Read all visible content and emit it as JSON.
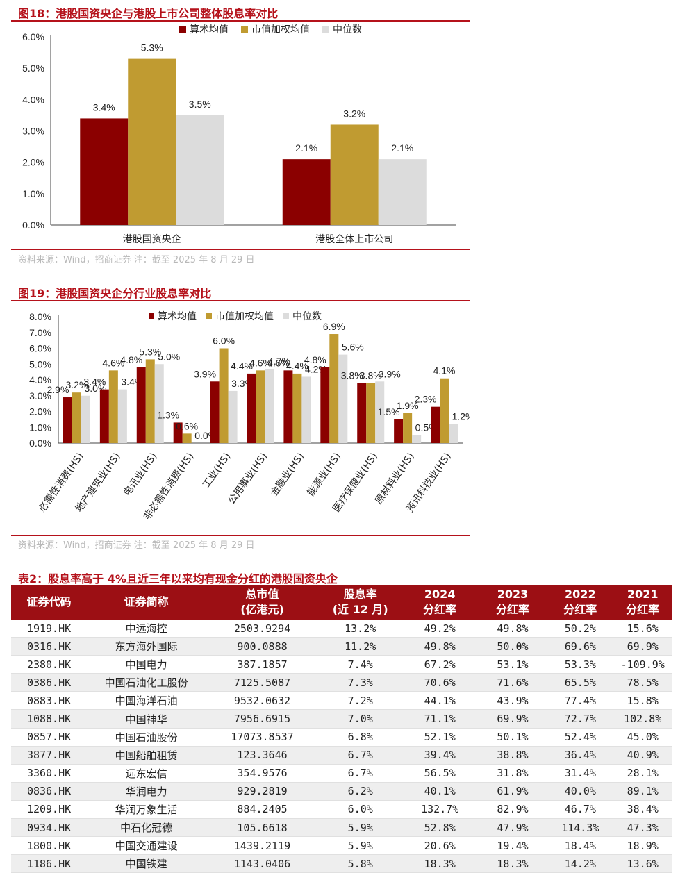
{
  "figure18": {
    "title": "图18：港股国资央企与港股上市公司整体股息率对比",
    "source": "资料来源：Wind，招商证券    注：截至 2025 年 8 月 29 日",
    "colors": {
      "mean": "#8b0000",
      "weighted": "#c09b31",
      "median": "#dcdcdc"
    },
    "chart_data": {
      "type": "bar",
      "categories": [
        "港股国资央企",
        "港股全体上市公司"
      ],
      "series": [
        {
          "name": "算术均值",
          "values": [
            3.4,
            2.1
          ]
        },
        {
          "name": "市值加权均值",
          "values": [
            5.3,
            3.2
          ]
        },
        {
          "name": "中位数",
          "values": [
            3.5,
            2.1
          ]
        }
      ],
      "value_labels": [
        [
          "3.4%",
          "2.1%"
        ],
        [
          "5.3%",
          "3.2%"
        ],
        [
          "3.5%",
          "2.1%"
        ]
      ],
      "yticks": [
        "0.0%",
        "1.0%",
        "2.0%",
        "3.0%",
        "4.0%",
        "5.0%",
        "6.0%"
      ],
      "ylim": [
        0,
        6
      ],
      "legend_position": "top"
    }
  },
  "figure19": {
    "title": "图19：港股国资央企分行业股息率对比",
    "source": "资料来源：Wind，招商证券    注：截至 2025 年 8 月 29 日",
    "chart_data": {
      "type": "bar",
      "categories": [
        "必需性消费(HS)",
        "地产建筑业(HS)",
        "电讯业(HS)",
        "非必需性消费(HS)",
        "工业(HS)",
        "公用事业(HS)",
        "金融业(HS)",
        "能源业(HS)",
        "医疗保健业(HS)",
        "原材料业(HS)",
        "资讯科技业(HS)"
      ],
      "series": [
        {
          "name": "算术均值",
          "values": [
            2.9,
            3.4,
            4.8,
            1.3,
            3.9,
            4.4,
            4.6,
            4.8,
            3.8,
            1.5,
            2.3
          ]
        },
        {
          "name": "市值加权均值",
          "values": [
            3.2,
            4.6,
            5.3,
            0.6,
            6.0,
            4.6,
            4.4,
            6.9,
            3.8,
            1.9,
            4.1
          ]
        },
        {
          "name": "中位数",
          "values": [
            3.0,
            3.4,
            5.0,
            0.0,
            3.3,
            4.7,
            4.2,
            5.6,
            3.9,
            0.5,
            1.2
          ]
        }
      ],
      "value_labels": [
        [
          "2.9%",
          "3.4%",
          "4.8%",
          "1.3%",
          "3.9%",
          "4.4%",
          "4.6%",
          "4.8%",
          "3.8%",
          "1.5%",
          "2.3%"
        ],
        [
          "3.2%",
          "4.6%",
          "5.3%",
          "0.6%",
          "6.0%",
          "4.6%",
          "4.4%",
          "6.9%",
          "3.8%",
          "1.9%",
          "4.1%"
        ],
        [
          "3.0%",
          "3.4%",
          "5.0%",
          "0.0%",
          "3.3%",
          "4.7%",
          "4.2%",
          "5.6%",
          "3.9%",
          "0.5%",
          "1.2%"
        ]
      ],
      "yticks": [
        "0.0%",
        "1.0%",
        "2.0%",
        "3.0%",
        "4.0%",
        "5.0%",
        "6.0%",
        "7.0%",
        "8.0%"
      ],
      "ylim": [
        0,
        8
      ],
      "legend_position": "top"
    }
  },
  "table2": {
    "title": "表2：股息率高于 4%且近三年以来均有现金分红的港股国资央企",
    "headers": [
      [
        "证券代码"
      ],
      [
        "证券简称"
      ],
      [
        "总市值",
        "(亿港元)"
      ],
      [
        "股息率",
        "(近 12 月)"
      ],
      [
        "2024",
        "分红率"
      ],
      [
        "2023",
        "分红率"
      ],
      [
        "2022",
        "分红率"
      ],
      [
        "2021",
        "分红率"
      ]
    ],
    "rows": [
      [
        "1919.HK",
        "中远海控",
        "2503.9294",
        "13.2%",
        "49.2%",
        "49.8%",
        "50.2%",
        "15.6%"
      ],
      [
        "0316.HK",
        "东方海外国际",
        "900.0888",
        "11.2%",
        "49.8%",
        "50.0%",
        "69.6%",
        "69.9%"
      ],
      [
        "2380.HK",
        "中国电力",
        "387.1857",
        "7.4%",
        "67.2%",
        "53.1%",
        "53.3%",
        "-109.9%"
      ],
      [
        "0386.HK",
        "中国石油化工股份",
        "7125.5087",
        "7.3%",
        "70.6%",
        "71.6%",
        "65.5%",
        "78.5%"
      ],
      [
        "0883.HK",
        "中国海洋石油",
        "9532.0632",
        "7.2%",
        "44.1%",
        "43.9%",
        "77.4%",
        "15.8%"
      ],
      [
        "1088.HK",
        "中国神华",
        "7956.6915",
        "7.0%",
        "71.1%",
        "69.9%",
        "72.7%",
        "102.8%"
      ],
      [
        "0857.HK",
        "中国石油股份",
        "17073.8537",
        "6.8%",
        "52.1%",
        "50.1%",
        "52.4%",
        "45.0%"
      ],
      [
        "3877.HK",
        "中国船舶租赁",
        "123.3646",
        "6.7%",
        "39.4%",
        "38.8%",
        "36.4%",
        "40.9%"
      ],
      [
        "3360.HK",
        "远东宏信",
        "354.9576",
        "6.7%",
        "56.5%",
        "31.8%",
        "31.4%",
        "28.1%"
      ],
      [
        "0836.HK",
        "华润电力",
        "929.2819",
        "6.2%",
        "40.1%",
        "61.9%",
        "40.0%",
        "89.1%"
      ],
      [
        "1209.HK",
        "华润万象生活",
        "884.2405",
        "6.0%",
        "132.7%",
        "82.9%",
        "46.7%",
        "38.4%"
      ],
      [
        "0934.HK",
        "中石化冠德",
        "105.6618",
        "5.9%",
        "52.8%",
        "47.9%",
        "114.3%",
        "47.3%"
      ],
      [
        "1800.HK",
        "中国交通建设",
        "1439.2119",
        "5.9%",
        "20.6%",
        "19.4%",
        "18.4%",
        "18.9%"
      ],
      [
        "1186.HK",
        "中国铁建",
        "1143.0406",
        "5.8%",
        "18.3%",
        "18.3%",
        "14.2%",
        "13.6%"
      ]
    ]
  }
}
